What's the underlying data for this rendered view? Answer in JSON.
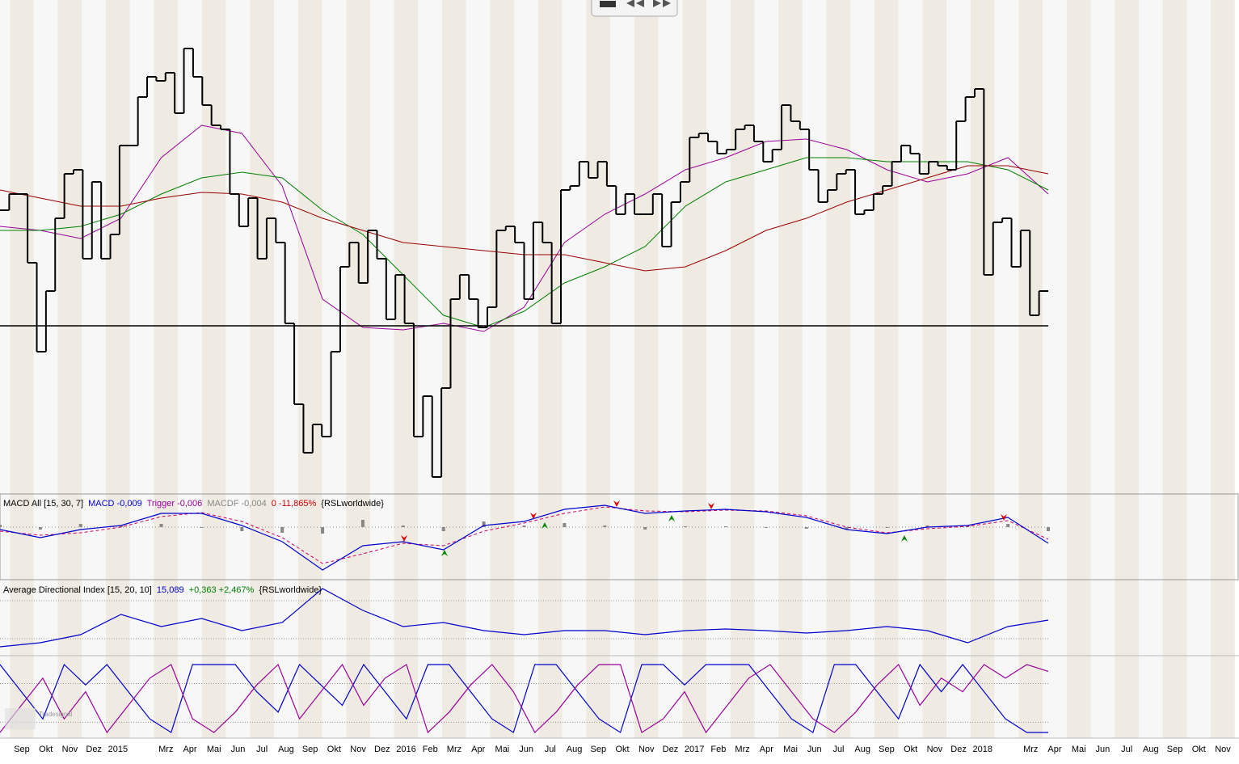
{
  "chart_data": {
    "type": "stock-panels",
    "months": [
      "Sep",
      "Okt",
      "Nov",
      "Dez",
      "2015",
      null,
      "Mrz",
      "Apr",
      "Mai",
      "Jun",
      "Jul",
      "Aug",
      "Sep",
      "Okt",
      "Nov",
      "Dez",
      "2016",
      "Feb",
      "Mrz",
      "Apr",
      "Mai",
      "Jun",
      "Jul",
      "Aug",
      "Sep",
      "Okt",
      "Nov",
      "Dez",
      "2017",
      "Feb",
      "Mrz",
      "Apr",
      "Mai",
      "Jun",
      "Jul",
      "Aug",
      "Sep",
      "Okt",
      "Nov",
      "Dez",
      "2018",
      null,
      "Mrz",
      "Apr",
      "Mai",
      "Jun",
      "Jul",
      "Aug",
      "Sep",
      "Okt",
      "Nov"
    ],
    "price": {
      "ylim": [
        0,
        610
      ],
      "color": "#000000",
      "values": [
        350,
        370,
        370,
        285,
        175,
        250,
        340,
        395,
        400,
        290,
        385,
        290,
        320,
        430,
        430,
        490,
        515,
        510,
        520,
        470,
        550,
        515,
        480,
        455,
        450,
        370,
        330,
        365,
        290,
        340,
        310,
        210,
        110,
        50,
        85,
        70,
        175,
        280,
        310,
        260,
        325,
        290,
        215,
        270,
        210,
        70,
        120,
        20,
        130,
        240,
        270,
        240,
        205,
        230,
        325,
        330,
        310,
        240,
        335,
        310,
        210,
        375,
        380,
        410,
        390,
        410,
        380,
        345,
        370,
        345,
        345,
        370,
        305,
        360,
        385,
        440,
        445,
        435,
        420,
        425,
        450,
        455,
        435,
        410,
        425,
        480,
        460,
        450,
        400,
        360,
        375,
        395,
        400,
        345,
        350,
        370,
        380,
        410,
        430,
        420,
        395,
        410,
        405,
        400,
        460,
        490,
        500,
        270,
        335,
        340,
        280,
        325,
        220,
        250
      ],
      "averages": [
        {
          "color": "#990099",
          "values": [
            330,
            325,
            315,
            340,
            415,
            455,
            445,
            380,
            240,
            205,
            202,
            210,
            200,
            230,
            310,
            345,
            370,
            400,
            415,
            435,
            438,
            425,
            400,
            385,
            395,
            415,
            370
          ]
        },
        {
          "color": "#008000",
          "values": [
            325,
            325,
            330,
            345,
            370,
            390,
            397,
            390,
            350,
            320,
            270,
            220,
            205,
            225,
            260,
            280,
            305,
            355,
            385,
            400,
            415,
            415,
            410,
            410,
            410,
            400,
            375
          ]
        },
        {
          "color": "#990000",
          "values": [
            375,
            365,
            355,
            355,
            365,
            372,
            370,
            360,
            340,
            325,
            310,
            305,
            300,
            295,
            295,
            285,
            275,
            280,
            300,
            325,
            340,
            360,
            375,
            390,
            405,
            405,
            395
          ]
        }
      ],
      "support_level": 207
    },
    "macd": {
      "title": "MACD All [15, 30, 7]",
      "macd_label": "MACD -0,009",
      "trigger_label": "Trigger -0,006",
      "macdf_label": "MACDF -0,004",
      "zero_label": "0 -11,865%",
      "source": "{RSLworldwide}",
      "ylim": [
        0,
        105
      ],
      "zero_line": 65,
      "macd": [
        62,
        52,
        62,
        67,
        82,
        82,
        67,
        47,
        12,
        42,
        47,
        37,
        67,
        72,
        87,
        92,
        82,
        85,
        87,
        84,
        77,
        62,
        57,
        65,
        67,
        77,
        45
      ],
      "trigger": [
        60,
        55,
        58,
        65,
        78,
        83,
        72,
        52,
        20,
        32,
        45,
        42,
        60,
        70,
        82,
        90,
        85,
        84,
        86,
        85,
        79,
        65,
        58,
        63,
        66,
        73,
        50
      ],
      "histogram": [
        3,
        -3,
        4,
        2,
        4,
        -1,
        -5,
        -7,
        -8,
        9,
        2,
        -5,
        7,
        2,
        5,
        2,
        -3,
        1,
        1,
        -1,
        -2,
        -3,
        -1,
        2,
        1,
        4,
        -5
      ]
    },
    "adx": {
      "title": "Average Directional Index [15, 20, 10]",
      "value_label": "15,089",
      "change_label": "+0,363 +2,467%",
      "source": "{RSLworldwide}",
      "ylim": [
        0,
        90
      ],
      "levels": [
        67,
        20
      ],
      "values": [
        10,
        15,
        25,
        50,
        35,
        45,
        30,
        40,
        82,
        55,
        35,
        40,
        30,
        25,
        30,
        30,
        25,
        30,
        32,
        30,
        27,
        30,
        35,
        30,
        15,
        35,
        43
      ]
    },
    "oscillator": {
      "ylim": [
        0,
        100
      ],
      "levels": [
        72,
        15
      ],
      "series": [
        {
          "color": "#0000cc",
          "values": [
            100,
            60,
            20,
            100,
            70,
            100,
            60,
            20,
            0,
            100,
            100,
            100,
            60,
            30,
            100,
            70,
            40,
            100,
            60,
            20,
            100,
            100,
            60,
            20,
            0,
            100,
            100,
            60,
            20,
            0,
            100,
            100,
            70,
            100,
            100,
            100,
            60,
            20,
            0,
            100,
            100,
            60,
            20,
            100,
            60,
            100,
            60,
            20,
            0,
            0
          ]
        },
        {
          "color": "#990099",
          "values": [
            0,
            40,
            80,
            20,
            60,
            0,
            40,
            80,
            100,
            20,
            0,
            30,
            70,
            100,
            20,
            60,
            100,
            40,
            80,
            100,
            0,
            30,
            70,
            100,
            60,
            0,
            30,
            70,
            100,
            100,
            0,
            20,
            60,
            0,
            40,
            80,
            100,
            60,
            20,
            0,
            30,
            70,
            100,
            40,
            80,
            60,
            100,
            80,
            100,
            90
          ]
        }
      ]
    },
    "watermark": "Tradesignal"
  }
}
